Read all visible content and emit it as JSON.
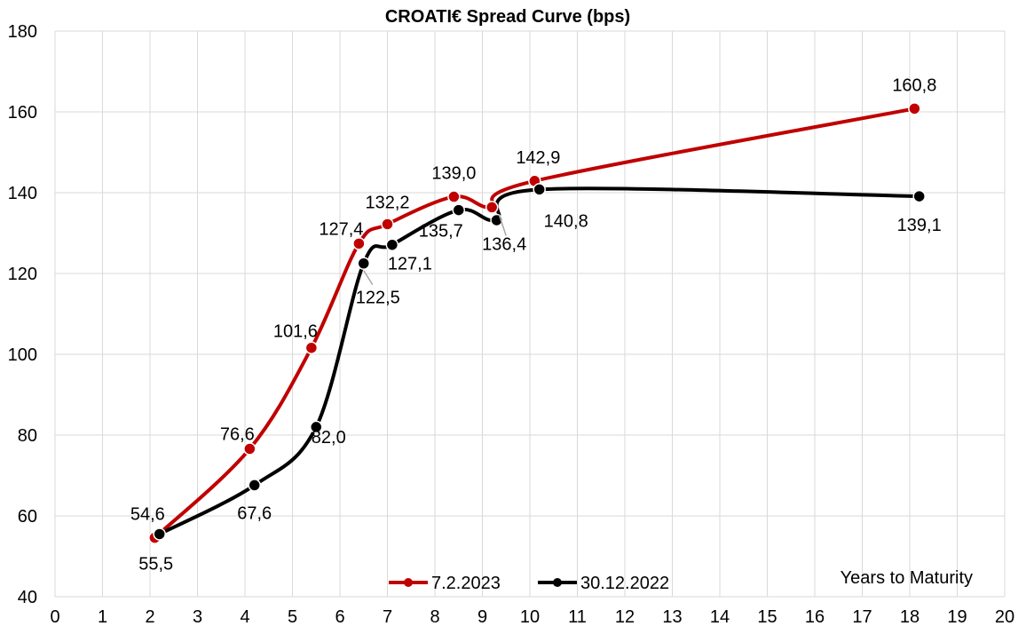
{
  "chart_data": {
    "type": "line",
    "title": "CROATI€ Spread Curve (bps)",
    "xlabel": "Years to Maturity",
    "ylabel": "",
    "xlim": [
      0,
      20
    ],
    "ylim": [
      40,
      180
    ],
    "xticks": [
      "0",
      "1",
      "2",
      "3",
      "4",
      "5",
      "6",
      "7",
      "8",
      "9",
      "10",
      "11",
      "12",
      "13",
      "14",
      "15",
      "16",
      "17",
      "18",
      "19",
      "20"
    ],
    "yticks": [
      "40",
      "60",
      "80",
      "100",
      "120",
      "140",
      "160",
      "180"
    ],
    "grid": true,
    "legend_position": "bottom-center",
    "series": [
      {
        "name": "7.2.2023",
        "color": "#c00000",
        "x": [
          2.1,
          4.1,
          5.4,
          6.4,
          7.0,
          8.4,
          9.2,
          10.1,
          18.1
        ],
        "values": [
          54.6,
          76.6,
          101.6,
          127.4,
          132.2,
          139.0,
          136.4,
          142.9,
          160.8
        ],
        "labels": [
          "54,6",
          "76,6",
          "101,6",
          "127,4",
          "132,2",
          "139,0",
          "136,4",
          "142,9",
          "160,8"
        ]
      },
      {
        "name": "30.12.2022",
        "color": "#000000",
        "x": [
          2.2,
          4.2,
          5.5,
          6.5,
          7.1,
          8.5,
          9.3,
          10.2,
          18.2
        ],
        "values": [
          55.5,
          67.6,
          82.0,
          122.5,
          127.1,
          135.7,
          133.2,
          140.8,
          139.1
        ],
        "labels": [
          "55,5",
          "67,6",
          "82,0",
          "122,5",
          "127,1",
          "135,7",
          "",
          "140,8",
          "139,1"
        ]
      }
    ]
  }
}
